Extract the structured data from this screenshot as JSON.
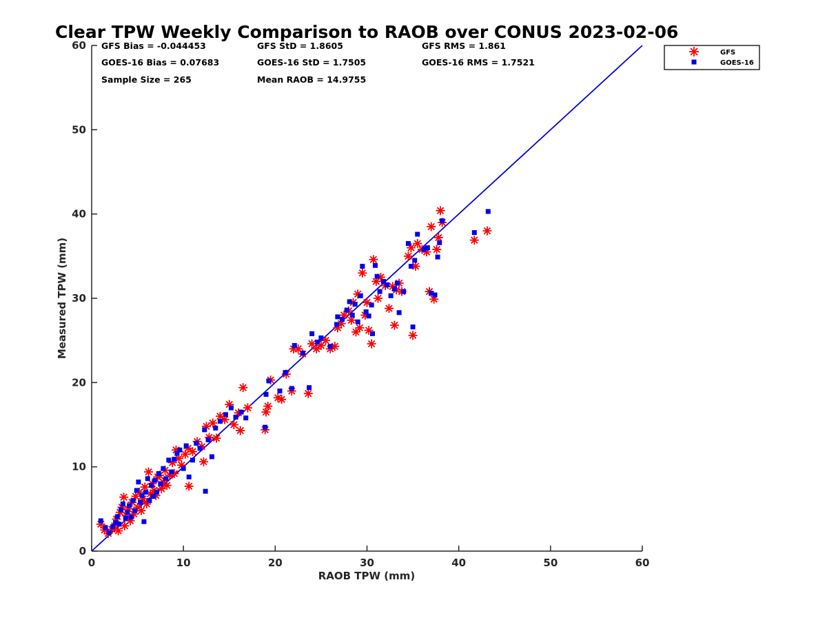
{
  "chart_data": {
    "type": "scatter",
    "title": "Clear TPW Weekly Comparison to RAOB over CONUS 2023-02-06",
    "xlabel": "RAOB TPW (mm)",
    "ylabel": "Measured TPW (mm)",
    "xlim": [
      0,
      60
    ],
    "ylim": [
      0,
      60
    ],
    "xticks": [
      "0",
      "10",
      "20",
      "30",
      "40",
      "50",
      "60"
    ],
    "yticks": [
      "0",
      "10",
      "20",
      "30",
      "40",
      "50",
      "60"
    ],
    "grid": false,
    "legend_position": "top-right",
    "reference_line": {
      "from": [
        0,
        0
      ],
      "to": [
        60,
        60
      ],
      "color": "#0000dd"
    },
    "stats": [
      "GFS Bias = -0.044453",
      "GFS StD = 1.8605",
      "GFS RMS = 1.861",
      "GOES-16 Bias = 0.07683",
      "GOES-16 StD = 1.7505",
      "GOES-16 RMS = 1.7521",
      "Sample Size = 265",
      "Mean RAOB = 14.9755"
    ],
    "series": [
      {
        "name": "GFS",
        "marker": "asterisk",
        "color": "#ff0000",
        "points": [
          [
            1.0,
            3.2
          ],
          [
            1.4,
            2.5
          ],
          [
            1.8,
            2.1
          ],
          [
            2.2,
            2.6
          ],
          [
            2.5,
            3.0
          ],
          [
            2.7,
            3.8
          ],
          [
            2.9,
            2.4
          ],
          [
            3.1,
            4.6
          ],
          [
            3.3,
            5.2
          ],
          [
            3.5,
            6.4
          ],
          [
            3.6,
            3.0
          ],
          [
            3.8,
            4.2
          ],
          [
            4.0,
            5.0
          ],
          [
            4.2,
            3.6
          ],
          [
            4.4,
            5.8
          ],
          [
            4.6,
            4.4
          ],
          [
            4.8,
            6.5
          ],
          [
            5.0,
            5.2
          ],
          [
            5.2,
            7.0
          ],
          [
            5.4,
            4.8
          ],
          [
            5.6,
            6.2
          ],
          [
            5.8,
            7.6
          ],
          [
            6.0,
            5.6
          ],
          [
            6.2,
            9.4
          ],
          [
            6.4,
            6.8
          ],
          [
            6.6,
            8.0
          ],
          [
            6.8,
            7.2
          ],
          [
            7.0,
            6.6
          ],
          [
            7.2,
            8.8
          ],
          [
            7.4,
            9.0
          ],
          [
            7.6,
            7.4
          ],
          [
            7.8,
            8.2
          ],
          [
            8.0,
            9.6
          ],
          [
            8.2,
            7.8
          ],
          [
            8.5,
            9.0
          ],
          [
            8.8,
            10.5
          ],
          [
            9.0,
            9.2
          ],
          [
            9.2,
            12.0
          ],
          [
            9.5,
            11.0
          ],
          [
            9.8,
            10.2
          ],
          [
            10.2,
            11.5
          ],
          [
            10.5,
            12.2
          ],
          [
            10.6,
            7.7
          ],
          [
            11.0,
            11.8
          ],
          [
            11.5,
            13.0
          ],
          [
            12.0,
            12.4
          ],
          [
            12.2,
            10.6
          ],
          [
            12.5,
            14.8
          ],
          [
            12.8,
            13.5
          ],
          [
            13.2,
            15.2
          ],
          [
            13.6,
            13.4
          ],
          [
            14.0,
            16.0
          ],
          [
            14.5,
            15.6
          ],
          [
            15.0,
            17.4
          ],
          [
            15.5,
            15.0
          ],
          [
            16.0,
            16.4
          ],
          [
            16.2,
            14.3
          ],
          [
            16.5,
            19.4
          ],
          [
            17.0,
            17.0
          ],
          [
            18.9,
            14.4
          ],
          [
            19.0,
            16.5
          ],
          [
            19.2,
            17.2
          ],
          [
            19.5,
            20.3
          ],
          [
            20.3,
            18.2
          ],
          [
            20.7,
            18.0
          ],
          [
            21.2,
            21.0
          ],
          [
            21.8,
            19.0
          ],
          [
            22.0,
            24.0
          ],
          [
            22.5,
            24.0
          ],
          [
            23.0,
            23.4
          ],
          [
            23.6,
            18.7
          ],
          [
            24.0,
            24.6
          ],
          [
            24.5,
            24.0
          ],
          [
            25.0,
            24.4
          ],
          [
            25.5,
            25.0
          ],
          [
            26.0,
            24.0
          ],
          [
            26.5,
            24.3
          ],
          [
            26.8,
            26.5
          ],
          [
            27.2,
            27.0
          ],
          [
            27.5,
            28.0
          ],
          [
            28.0,
            28.5
          ],
          [
            28.3,
            27.4
          ],
          [
            28.5,
            29.5
          ],
          [
            28.8,
            26.0
          ],
          [
            29.0,
            30.5
          ],
          [
            29.2,
            26.5
          ],
          [
            29.5,
            33.0
          ],
          [
            29.8,
            28.0
          ],
          [
            30.0,
            29.5
          ],
          [
            30.2,
            26.2
          ],
          [
            30.5,
            24.6
          ],
          [
            30.7,
            34.6
          ],
          [
            31.0,
            32.0
          ],
          [
            31.2,
            30.0
          ],
          [
            31.5,
            32.5
          ],
          [
            32.0,
            31.5
          ],
          [
            32.4,
            28.8
          ],
          [
            32.8,
            31.4
          ],
          [
            33.0,
            26.8
          ],
          [
            33.2,
            31.0
          ],
          [
            33.5,
            31.8
          ],
          [
            33.8,
            30.8
          ],
          [
            34.5,
            35.0
          ],
          [
            34.8,
            36.0
          ],
          [
            35.0,
            25.6
          ],
          [
            35.3,
            33.8
          ],
          [
            35.5,
            36.5
          ],
          [
            36.0,
            35.8
          ],
          [
            36.5,
            35.5
          ],
          [
            36.8,
            30.8
          ],
          [
            37.0,
            38.5
          ],
          [
            37.3,
            29.9
          ],
          [
            37.6,
            35.8
          ],
          [
            37.8,
            37.2
          ],
          [
            38.0,
            40.4
          ],
          [
            38.2,
            39.0
          ],
          [
            41.7,
            36.9
          ],
          [
            43.1,
            38.0
          ]
        ]
      },
      {
        "name": "GOES-16",
        "marker": "square",
        "color": "#0000ee",
        "points": [
          [
            1.0,
            3.6
          ],
          [
            1.5,
            2.8
          ],
          [
            1.9,
            2.2
          ],
          [
            2.3,
            2.9
          ],
          [
            2.6,
            3.4
          ],
          [
            2.8,
            4.1
          ],
          [
            3.0,
            3.2
          ],
          [
            3.2,
            4.9
          ],
          [
            3.4,
            5.6
          ],
          [
            3.7,
            3.9
          ],
          [
            3.9,
            4.6
          ],
          [
            4.1,
            5.4
          ],
          [
            4.3,
            4.0
          ],
          [
            4.5,
            6.0
          ],
          [
            4.7,
            4.8
          ],
          [
            4.9,
            7.2
          ],
          [
            5.1,
            8.2
          ],
          [
            5.3,
            5.8
          ],
          [
            5.5,
            6.6
          ],
          [
            5.7,
            3.5
          ],
          [
            5.9,
            7.0
          ],
          [
            6.1,
            8.6
          ],
          [
            6.3,
            6.0
          ],
          [
            6.5,
            7.8
          ],
          [
            6.7,
            6.5
          ],
          [
            6.9,
            8.4
          ],
          [
            7.1,
            7.0
          ],
          [
            7.3,
            9.2
          ],
          [
            7.5,
            8.0
          ],
          [
            7.8,
            9.8
          ],
          [
            8.1,
            8.6
          ],
          [
            8.4,
            10.8
          ],
          [
            8.7,
            9.4
          ],
          [
            9.0,
            10.9
          ],
          [
            9.3,
            11.6
          ],
          [
            9.6,
            12.0
          ],
          [
            10.0,
            9.8
          ],
          [
            10.3,
            12.5
          ],
          [
            10.6,
            8.8
          ],
          [
            11.0,
            10.8
          ],
          [
            11.4,
            12.8
          ],
          [
            11.8,
            12.2
          ],
          [
            12.3,
            14.4
          ],
          [
            12.4,
            7.1
          ],
          [
            12.7,
            13.2
          ],
          [
            13.1,
            11.2
          ],
          [
            13.5,
            14.6
          ],
          [
            14.0,
            15.4
          ],
          [
            14.6,
            16.2
          ],
          [
            15.2,
            17.0
          ],
          [
            15.7,
            15.9
          ],
          [
            16.3,
            16.5
          ],
          [
            16.8,
            15.8
          ],
          [
            18.9,
            14.7
          ],
          [
            19.0,
            18.6
          ],
          [
            19.3,
            20.2
          ],
          [
            20.5,
            19.0
          ],
          [
            21.1,
            21.2
          ],
          [
            21.8,
            19.3
          ],
          [
            22.1,
            24.4
          ],
          [
            23.0,
            23.5
          ],
          [
            23.7,
            19.4
          ],
          [
            24.0,
            25.8
          ],
          [
            24.6,
            24.8
          ],
          [
            25.0,
            25.3
          ],
          [
            26.0,
            24.3
          ],
          [
            26.7,
            26.9
          ],
          [
            26.8,
            27.8
          ],
          [
            27.3,
            27.5
          ],
          [
            27.8,
            28.6
          ],
          [
            28.1,
            29.6
          ],
          [
            28.4,
            28.0
          ],
          [
            28.7,
            29.3
          ],
          [
            29.0,
            27.2
          ],
          [
            29.3,
            30.3
          ],
          [
            29.5,
            33.8
          ],
          [
            29.9,
            28.4
          ],
          [
            30.2,
            27.9
          ],
          [
            30.5,
            29.2
          ],
          [
            30.6,
            25.8
          ],
          [
            30.9,
            33.9
          ],
          [
            31.1,
            32.6
          ],
          [
            31.4,
            30.8
          ],
          [
            31.8,
            32.0
          ],
          [
            32.2,
            31.6
          ],
          [
            32.6,
            30.3
          ],
          [
            33.0,
            31.1
          ],
          [
            33.3,
            31.8
          ],
          [
            33.5,
            28.3
          ],
          [
            34.0,
            30.8
          ],
          [
            34.5,
            36.5
          ],
          [
            34.8,
            33.8
          ],
          [
            35.0,
            26.6
          ],
          [
            35.2,
            34.5
          ],
          [
            35.5,
            37.6
          ],
          [
            36.2,
            35.8
          ],
          [
            36.6,
            36.0
          ],
          [
            37.0,
            30.6
          ],
          [
            37.4,
            30.4
          ],
          [
            37.7,
            34.9
          ],
          [
            37.9,
            36.6
          ],
          [
            38.2,
            39.2
          ],
          [
            41.7,
            37.8
          ],
          [
            43.2,
            40.3
          ]
        ]
      }
    ]
  }
}
